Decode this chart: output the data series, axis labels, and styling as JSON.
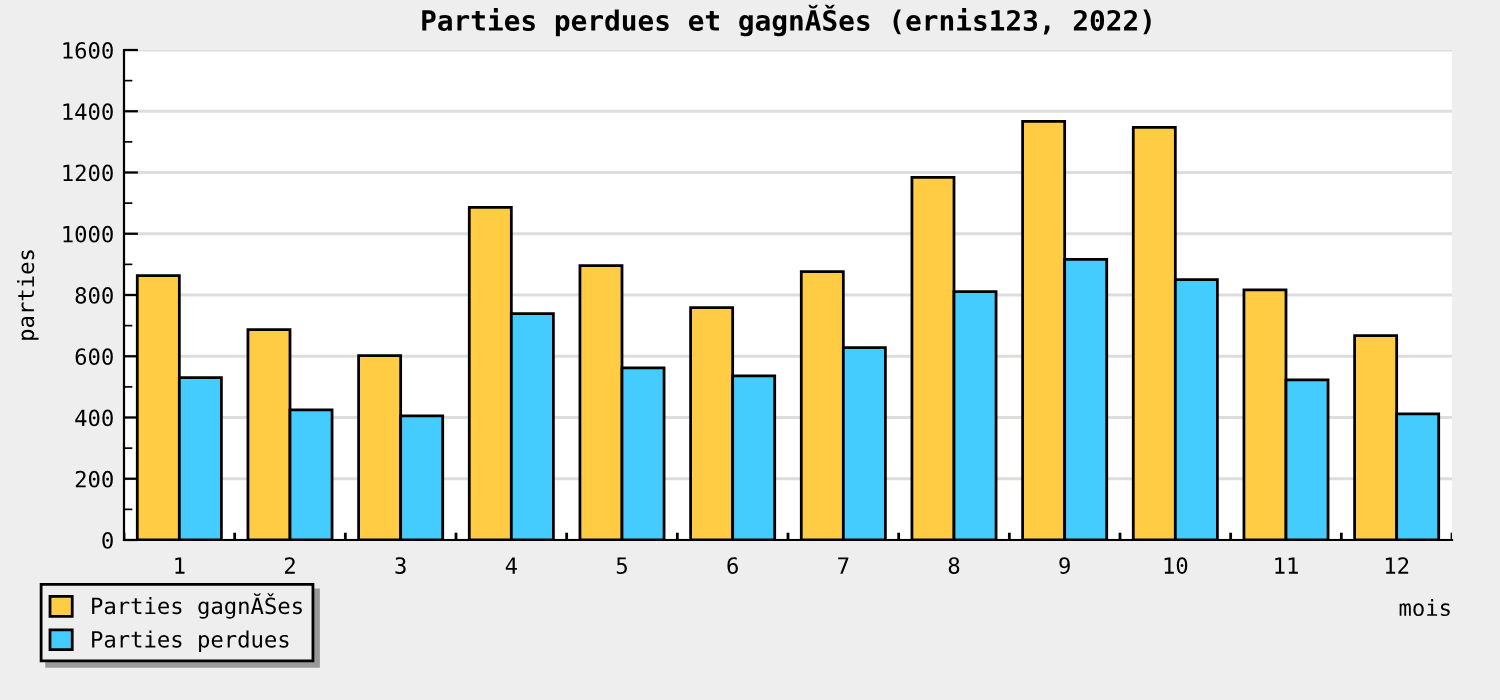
{
  "chart_data": {
    "type": "bar",
    "title": "Parties perdues et gagnĂŠes (ernis123, 2022)",
    "xlabel": "mois",
    "ylabel": "parties",
    "categories": [
      "1",
      "2",
      "3",
      "4",
      "5",
      "6",
      "7",
      "8",
      "9",
      "10",
      "11",
      "12"
    ],
    "series": [
      {
        "name": "Parties gagnĂŠes",
        "color": "#ffcc44",
        "values": [
          863,
          687,
          602,
          1086,
          896,
          759,
          876,
          1184,
          1367,
          1347,
          817,
          667
        ]
      },
      {
        "name": "Parties perdues",
        "color": "#44ccff",
        "values": [
          530,
          425,
          405,
          739,
          562,
          536,
          628,
          811,
          916,
          850,
          523,
          412
        ]
      }
    ],
    "ylim": [
      0,
      1600
    ],
    "yticks": [
      0,
      200,
      400,
      600,
      800,
      1000,
      1200,
      1400,
      1600
    ],
    "grid": "y",
    "legend": "bottom left"
  }
}
